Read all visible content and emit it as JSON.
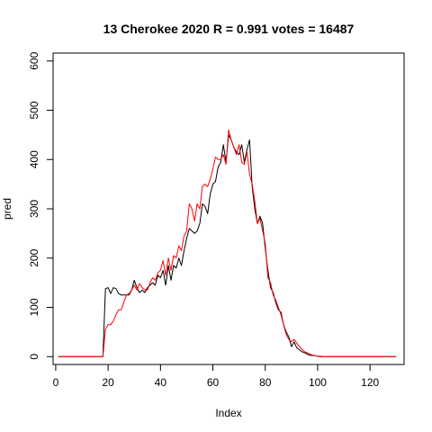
{
  "chart_data": {
    "type": "line",
    "title": "13 Cherokee 2020 R = 0.991 votes = 16487",
    "xlabel": "Index",
    "ylabel": "pred",
    "xlim": [
      -1,
      133
    ],
    "ylim": [
      -16,
      616
    ],
    "x_ticks": [
      0,
      20,
      40,
      60,
      80,
      100,
      120
    ],
    "y_ticks": [
      0,
      100,
      200,
      300,
      400,
      500,
      600
    ],
    "grid": false,
    "legend": "none",
    "series": [
      {
        "color": "#000000",
        "x": [
          1,
          2,
          3,
          4,
          5,
          6,
          7,
          8,
          9,
          10,
          11,
          12,
          13,
          14,
          15,
          16,
          17,
          18,
          19,
          20,
          21,
          22,
          23,
          24,
          25,
          26,
          27,
          28,
          29,
          30,
          31,
          32,
          33,
          34,
          35,
          36,
          37,
          38,
          39,
          40,
          41,
          42,
          43,
          44,
          45,
          46,
          47,
          48,
          49,
          50,
          51,
          52,
          53,
          54,
          55,
          56,
          57,
          58,
          59,
          60,
          61,
          62,
          63,
          64,
          65,
          66,
          67,
          68,
          69,
          70,
          71,
          72,
          73,
          74,
          75,
          76,
          77,
          78,
          79,
          80,
          81,
          82,
          83,
          84,
          85,
          86,
          87,
          88,
          89,
          90,
          91,
          92,
          93,
          94,
          95,
          96,
          97,
          98,
          99,
          100,
          101,
          102,
          103,
          104,
          105,
          106,
          107,
          108,
          109,
          110,
          111,
          112,
          113,
          114,
          115,
          116,
          117,
          118,
          119,
          120,
          121,
          122,
          123,
          124,
          125,
          126,
          127,
          128,
          129,
          130
        ],
        "y": [
          0,
          0,
          0,
          0,
          0,
          0,
          0,
          0,
          0,
          0,
          0,
          0,
          0,
          0,
          0,
          0,
          0,
          0,
          138,
          140,
          128,
          140,
          138,
          128,
          125,
          125,
          125,
          125,
          135,
          155,
          140,
          130,
          135,
          130,
          140,
          145,
          150,
          145,
          165,
          160,
          175,
          145,
          185,
          155,
          185,
          180,
          200,
          185,
          215,
          240,
          260,
          255,
          250,
          255,
          270,
          310,
          305,
          290,
          330,
          350,
          355,
          385,
          395,
          430,
          395,
          450,
          440,
          425,
          415,
          410,
          430,
          395,
          420,
          440,
          345,
          300,
          270,
          285,
          270,
          220,
          175,
          140,
          130,
          110,
          95,
          90,
          65,
          50,
          40,
          20,
          30,
          18,
          14,
          10,
          8,
          5,
          3,
          2,
          2,
          1,
          0,
          0,
          0,
          0,
          0,
          0,
          0,
          0,
          0,
          0,
          0,
          0,
          0,
          0,
          0,
          0,
          0,
          0,
          0,
          0,
          0,
          0,
          0,
          0,
          0,
          0,
          0,
          0,
          0,
          0
        ]
      },
      {
        "color": "#ff0000",
        "x": [
          1,
          2,
          3,
          4,
          5,
          6,
          7,
          8,
          9,
          10,
          11,
          12,
          13,
          14,
          15,
          16,
          17,
          18,
          19,
          20,
          21,
          22,
          23,
          24,
          25,
          26,
          27,
          28,
          29,
          30,
          31,
          32,
          33,
          34,
          35,
          36,
          37,
          38,
          39,
          40,
          41,
          42,
          43,
          44,
          45,
          46,
          47,
          48,
          49,
          50,
          51,
          52,
          53,
          54,
          55,
          56,
          57,
          58,
          59,
          60,
          61,
          62,
          63,
          64,
          65,
          66,
          67,
          68,
          69,
          70,
          71,
          72,
          73,
          74,
          75,
          76,
          77,
          78,
          79,
          80,
          81,
          82,
          83,
          84,
          85,
          86,
          87,
          88,
          89,
          90,
          91,
          92,
          93,
          94,
          95,
          96,
          97,
          98,
          99,
          100,
          101,
          102,
          103,
          104,
          105,
          106,
          107,
          108,
          109,
          110,
          111,
          112,
          113,
          114,
          115,
          116,
          117,
          118,
          119,
          120,
          121,
          122,
          123,
          124,
          125,
          126,
          127,
          128,
          129,
          130
        ],
        "y": [
          0,
          0,
          0,
          0,
          0,
          0,
          0,
          0,
          0,
          0,
          0,
          0,
          0,
          0,
          0,
          0,
          0,
          0,
          55,
          65,
          65,
          72,
          85,
          95,
          95,
          110,
          125,
          128,
          135,
          145,
          135,
          148,
          140,
          135,
          135,
          150,
          160,
          155,
          170,
          175,
          195,
          165,
          200,
          175,
          205,
          200,
          225,
          215,
          245,
          255,
          310,
          300,
          275,
          310,
          300,
          345,
          350,
          345,
          360,
          380,
          405,
          400,
          400,
          410,
          390,
          460,
          440,
          425,
          410,
          430,
          395,
          390,
          415,
          370,
          350,
          315,
          270,
          280,
          255,
          230,
          160,
          150,
          125,
          115,
          100,
          85,
          65,
          45,
          35,
          30,
          35,
          28,
          20,
          15,
          10,
          8,
          5,
          3,
          2,
          1,
          1,
          0,
          0,
          0,
          0,
          0,
          0,
          0,
          0,
          0,
          0,
          0,
          0,
          0,
          0,
          0,
          0,
          0,
          0,
          0,
          0,
          0,
          0,
          0,
          0,
          0,
          0,
          0,
          0,
          0
        ]
      }
    ]
  }
}
